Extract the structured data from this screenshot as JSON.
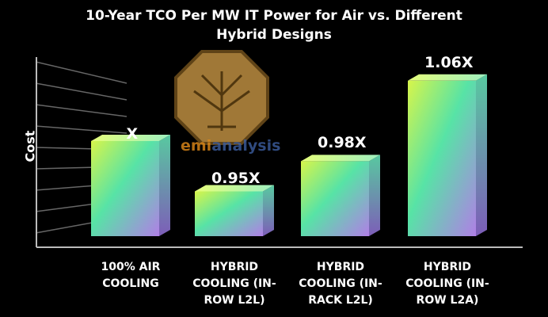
{
  "chart_data": {
    "type": "bar",
    "title": "10-Year TCO Per MW IT Power for Air vs. Different Hybrid Designs",
    "title_lines": [
      "10-Year TCO Per MW IT Power for Air vs. Different",
      "Hybrid Designs"
    ],
    "ylabel": "Cost",
    "xlabel": "",
    "categories": [
      "100% AIR COOLING",
      "HYBRID COOLING (IN-ROW L2L)",
      "HYBRID COOLING (IN-RACK L2L)",
      "HYBRID COOLING (IN-ROW L2A)"
    ],
    "category_lines": [
      [
        "100% AIR",
        "COOLING"
      ],
      [
        "HYBRID",
        "COOLING (IN-",
        "ROW L2L)"
      ],
      [
        "HYBRID",
        "COOLING (IN-",
        "RACK L2L)"
      ],
      [
        "HYBRID",
        "COOLING (IN-",
        "ROW L2A)"
      ]
    ],
    "values": [
      1.0,
      0.95,
      0.98,
      1.06
    ],
    "data_labels": [
      "X",
      "0.95X",
      "0.98X",
      "1.06X"
    ],
    "grid": false,
    "legend": "none"
  },
  "watermark": {
    "text_prefix": "emi",
    "text_suffix": "analysis"
  },
  "colors": {
    "background": "#000000",
    "bar_top": "#d7f54a",
    "bar_mid": "#57e3a6",
    "bar_bottom": "#b07fe6",
    "text": "#ffffff"
  }
}
